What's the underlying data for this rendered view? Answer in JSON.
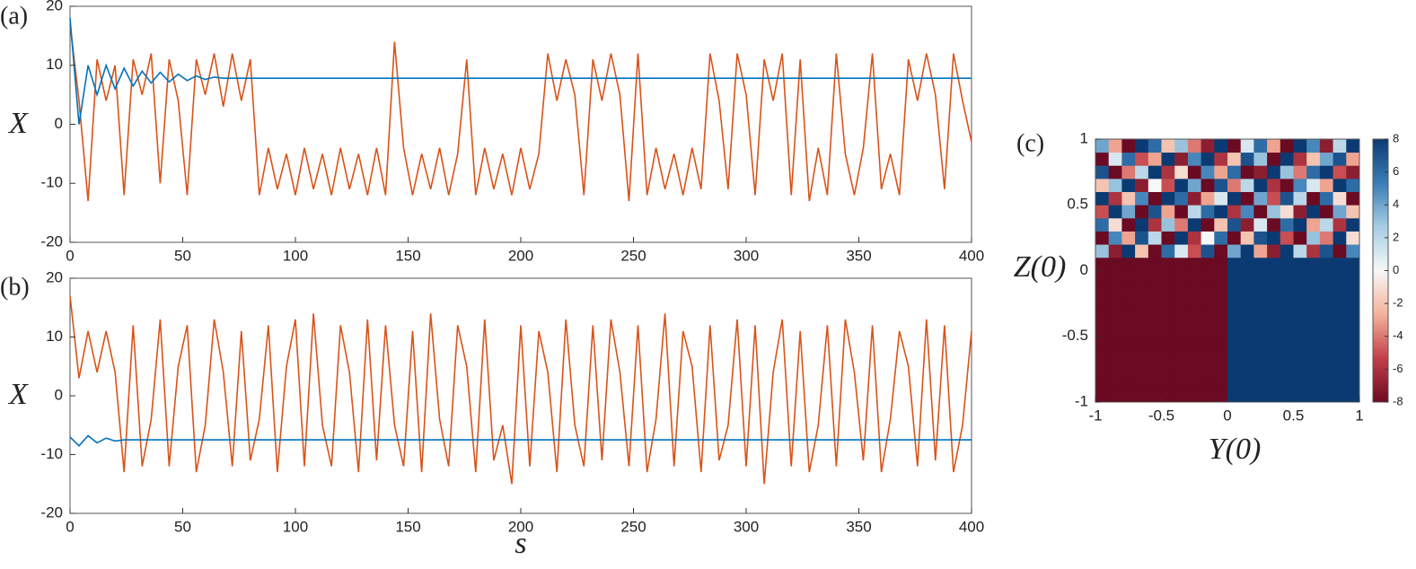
{
  "chart_data": [
    {
      "type": "line",
      "label": "(a)",
      "ylabel": "X",
      "x": [
        0,
        4,
        8,
        12,
        16,
        20,
        24,
        28,
        32,
        36,
        40,
        44,
        48,
        52,
        56,
        60,
        64,
        68,
        72,
        76,
        80,
        84,
        88,
        92,
        96,
        100,
        104,
        108,
        112,
        116,
        120,
        124,
        128,
        132,
        136,
        140,
        144,
        148,
        152,
        156,
        160,
        164,
        168,
        172,
        176,
        180,
        184,
        188,
        192,
        196,
        200,
        204,
        208,
        212,
        216,
        220,
        224,
        228,
        232,
        236,
        240,
        244,
        248,
        252,
        256,
        260,
        264,
        268,
        272,
        276,
        280,
        284,
        288,
        292,
        296,
        300,
        304,
        308,
        312,
        316,
        320,
        324,
        328,
        332,
        336,
        340,
        344,
        348,
        352,
        356,
        360,
        364,
        368,
        372,
        376,
        380,
        384,
        388,
        392,
        396,
        400
      ],
      "series": [
        {
          "color": "#0072bd",
          "values": [
            18,
            0,
            10,
            5,
            10,
            6,
            9.5,
            6.5,
            9,
            7,
            8.8,
            7.2,
            8.5,
            7.4,
            8.2,
            7.6,
            8,
            7.8,
            7.8,
            7.8,
            7.8,
            7.8,
            7.8,
            7.8,
            7.8,
            7.8,
            7.8,
            7.8,
            7.8,
            7.8,
            7.8,
            7.8,
            7.8,
            7.8,
            7.8,
            7.8,
            7.8,
            7.8,
            7.8,
            7.8,
            7.8,
            7.8,
            7.8,
            7.8,
            7.8,
            7.8,
            7.8,
            7.8,
            7.8,
            7.8,
            7.8,
            7.8,
            7.8,
            7.8,
            7.8,
            7.8,
            7.8,
            7.8,
            7.8,
            7.8,
            7.8,
            7.8,
            7.8,
            7.8,
            7.8,
            7.8,
            7.8,
            7.8,
            7.8,
            7.8,
            7.8,
            7.8,
            7.8,
            7.8,
            7.8,
            7.8,
            7.8,
            7.8,
            7.8,
            7.8,
            7.8,
            7.8,
            7.8,
            7.8,
            7.8,
            7.8,
            7.8,
            7.8,
            7.8,
            7.8,
            7.8,
            7.8,
            7.8,
            7.8,
            7.8,
            7.8,
            7.8,
            7.8,
            7.8,
            7.8,
            7.8
          ]
        },
        {
          "color": "#d95319",
          "values": [
            17,
            4,
            -13,
            11,
            4,
            10,
            -12,
            11,
            5,
            12,
            -10,
            11,
            4,
            -12,
            11,
            5,
            12,
            3,
            12,
            4,
            11,
            -12,
            -4,
            -11,
            -5,
            -12,
            -4,
            -11,
            -5,
            -12,
            -4,
            -11,
            -5,
            -12,
            -4,
            -12,
            14,
            -4,
            -12,
            -5,
            -11,
            -4,
            -12,
            -5,
            11,
            -12,
            -4,
            -11,
            -5,
            -12,
            -4,
            -11,
            -5,
            12,
            4,
            11,
            5,
            -12,
            11,
            4,
            12,
            5,
            -13,
            12,
            -12,
            -4,
            -11,
            -5,
            -12,
            -4,
            -11,
            12,
            4,
            -11,
            12,
            5,
            -12,
            11,
            4,
            12,
            -12,
            11,
            -13,
            -4,
            -12,
            12,
            -5,
            -12,
            -4,
            12,
            -11,
            -5,
            -12,
            11,
            4,
            12,
            5,
            -11,
            12,
            4,
            -3
          ]
        }
      ],
      "xlim": [
        0,
        400
      ],
      "xticks": [
        0,
        50,
        100,
        150,
        200,
        250,
        300,
        350,
        400
      ],
      "ylim": [
        -20,
        20
      ],
      "yticks": [
        -20,
        -10,
        0,
        10,
        20
      ]
    },
    {
      "type": "line",
      "label": "(b)",
      "ylabel": "X",
      "xlabel": "s",
      "x": [
        0,
        4,
        8,
        12,
        16,
        20,
        24,
        28,
        32,
        36,
        40,
        44,
        48,
        52,
        56,
        60,
        64,
        68,
        72,
        76,
        80,
        84,
        88,
        92,
        96,
        100,
        104,
        108,
        112,
        116,
        120,
        124,
        128,
        132,
        136,
        140,
        144,
        148,
        152,
        156,
        160,
        164,
        168,
        172,
        176,
        180,
        184,
        188,
        192,
        196,
        200,
        204,
        208,
        212,
        216,
        220,
        224,
        228,
        232,
        236,
        240,
        244,
        248,
        252,
        256,
        260,
        264,
        268,
        272,
        276,
        280,
        284,
        288,
        292,
        296,
        300,
        304,
        308,
        312,
        316,
        320,
        324,
        328,
        332,
        336,
        340,
        344,
        348,
        352,
        356,
        360,
        364,
        368,
        372,
        376,
        380,
        384,
        388,
        392,
        396,
        400
      ],
      "series": [
        {
          "color": "#0072bd",
          "values": [
            -7,
            -8.5,
            -6.8,
            -8,
            -7.2,
            -7.7,
            -7.5,
            -7.5,
            -7.5,
            -7.5,
            -7.5,
            -7.5,
            -7.5,
            -7.5,
            -7.5,
            -7.5,
            -7.5,
            -7.5,
            -7.5,
            -7.5,
            -7.5,
            -7.5,
            -7.5,
            -7.5,
            -7.5,
            -7.5,
            -7.5,
            -7.5,
            -7.5,
            -7.5,
            -7.5,
            -7.5,
            -7.5,
            -7.5,
            -7.5,
            -7.5,
            -7.5,
            -7.5,
            -7.5,
            -7.5,
            -7.5,
            -7.5,
            -7.5,
            -7.5,
            -7.5,
            -7.5,
            -7.5,
            -7.5,
            -7.5,
            -7.5,
            -7.5,
            -7.5,
            -7.5,
            -7.5,
            -7.5,
            -7.5,
            -7.5,
            -7.5,
            -7.5,
            -7.5,
            -7.5,
            -7.5,
            -7.5,
            -7.5,
            -7.5,
            -7.5,
            -7.5,
            -7.5,
            -7.5,
            -7.5,
            -7.5,
            -7.5,
            -7.5,
            -7.5,
            -7.5,
            -7.5,
            -7.5,
            -7.5,
            -7.5,
            -7.5,
            -7.5,
            -7.5,
            -7.5,
            -7.5,
            -7.5,
            -7.5,
            -7.5,
            -7.5,
            -7.5,
            -7.5,
            -7.5,
            -7.5,
            -7.5,
            -7.5,
            -7.5,
            -7.5,
            -7.5,
            -7.5,
            -7.5,
            -7.5,
            -7.5
          ]
        },
        {
          "color": "#d95319",
          "values": [
            17,
            3,
            11,
            4,
            11,
            4,
            -13,
            12,
            -12,
            -4,
            13,
            -12,
            5,
            12,
            -13,
            -5,
            13,
            4,
            -12,
            11,
            -11,
            -4,
            12,
            -13,
            5,
            13,
            -12,
            14,
            -5,
            -12,
            12,
            4,
            -13,
            13,
            -11,
            12,
            -5,
            -12,
            11,
            -13,
            14,
            -4,
            -12,
            12,
            5,
            -13,
            13,
            -11,
            -5,
            -15,
            12,
            -12,
            11,
            4,
            -13,
            13,
            -5,
            -12,
            12,
            -11,
            13,
            4,
            -12,
            12,
            -13,
            -4,
            14,
            -12,
            11,
            5,
            -13,
            12,
            -11,
            -5,
            13,
            -12,
            12,
            -15,
            4,
            13,
            -12,
            11,
            -13,
            -5,
            12,
            -12,
            13,
            4,
            -11,
            12,
            -13,
            -4,
            11,
            5,
            -12,
            13,
            -11,
            12,
            -13,
            -5,
            11
          ]
        }
      ],
      "xlim": [
        0,
        400
      ],
      "xticks": [
        0,
        50,
        100,
        150,
        200,
        250,
        300,
        350,
        400
      ],
      "ylim": [
        -20,
        20
      ],
      "yticks": [
        -20,
        -10,
        0,
        10,
        20
      ]
    },
    {
      "type": "heatmap",
      "label": "(c)",
      "xlabel": "Y(0)",
      "ylabel": "Z(0)",
      "xlim": [
        -1,
        1
      ],
      "xticks": [
        -1,
        -0.5,
        0,
        0.5,
        1
      ],
      "ylim": [
        -1,
        1
      ],
      "yticks": [
        -1,
        -0.5,
        0,
        0.5,
        1
      ],
      "clim": [
        -8,
        8
      ],
      "cticks": [
        -8,
        -6,
        -4,
        -2,
        0,
        2,
        4,
        6,
        8
      ],
      "colormap": [
        "#6b0a23",
        "#c2404a",
        "#f4b29a",
        "#f7f7f7",
        "#a6cde3",
        "#3a7db6",
        "#0b3a72"
      ],
      "values": [
        [
          -8,
          -8,
          -8,
          -8,
          -8,
          -8,
          -8,
          -8,
          -8,
          -8,
          8,
          8,
          8,
          8,
          8,
          8,
          8,
          8,
          8,
          8
        ],
        [
          -8,
          -8,
          -8,
          -8,
          -8,
          -8,
          -8,
          -8,
          -8,
          -8,
          8,
          8,
          8,
          8,
          8,
          8,
          8,
          8,
          8,
          8
        ],
        [
          -8,
          -8,
          -8,
          -8,
          -8,
          -8,
          -8,
          -8,
          -8,
          -8,
          8,
          8,
          8,
          8,
          8,
          8,
          8,
          8,
          8,
          8
        ],
        [
          -8,
          -8,
          -8,
          -8,
          -8,
          -8,
          -8,
          -8,
          -8,
          -8,
          8,
          8,
          8,
          8,
          8,
          8,
          8,
          8,
          8,
          8
        ],
        [
          -8,
          -8,
          -8,
          -8,
          -8,
          -8,
          -8,
          -8,
          -8,
          -8,
          8,
          8,
          8,
          8,
          8,
          8,
          8,
          8,
          8,
          8
        ],
        [
          -8,
          -8,
          -8,
          -8,
          -8,
          -8,
          -8,
          -8,
          -8,
          -8,
          8,
          8,
          8,
          8,
          8,
          8,
          8,
          8,
          8,
          8
        ],
        [
          -8,
          -8,
          -8,
          -8,
          -8,
          -8,
          -8,
          -8,
          -8,
          -8,
          8,
          8,
          8,
          8,
          8,
          8,
          8,
          8,
          8,
          8
        ],
        [
          -8,
          -8,
          -8,
          -8,
          -8,
          -8,
          -8,
          -8,
          -8,
          -8,
          8,
          8,
          8,
          8,
          8,
          8,
          8,
          8,
          8,
          8
        ],
        [
          -8,
          -8,
          -8,
          -8,
          -8,
          -8,
          -8,
          -8,
          -8,
          -8,
          8,
          8,
          8,
          8,
          8,
          8,
          8,
          8,
          8,
          8
        ],
        [
          -8,
          -8,
          -8,
          -8,
          -8,
          -8,
          -8,
          -8,
          -8,
          -8,
          8,
          8,
          8,
          8,
          8,
          8,
          8,
          8,
          8,
          8
        ],
        [
          -8,
          -8,
          -8,
          -8,
          -8,
          -8,
          -8,
          -8,
          -8,
          -8,
          8,
          8,
          8,
          8,
          8,
          8,
          8,
          8,
          8,
          8
        ],
        [
          3,
          -7,
          8,
          -2,
          -8,
          6,
          1,
          -5,
          7,
          -8,
          4,
          8,
          -3,
          -7,
          8,
          2,
          -6,
          7,
          -8,
          5
        ],
        [
          -8,
          5,
          -3,
          7,
          2,
          -8,
          8,
          -6,
          0,
          6,
          -8,
          -2,
          7,
          8,
          -5,
          -8,
          3,
          -4,
          8,
          -1
        ],
        [
          6,
          -1,
          -8,
          8,
          -6,
          3,
          -4,
          8,
          -8,
          -2,
          7,
          -7,
          1,
          -8,
          6,
          8,
          -3,
          2,
          -6,
          8
        ],
        [
          -5,
          8,
          4,
          -8,
          7,
          -3,
          -8,
          2,
          6,
          8,
          -6,
          5,
          -8,
          3,
          -1,
          -7,
          8,
          -8,
          4,
          -2
        ],
        [
          8,
          -6,
          -2,
          5,
          -8,
          8,
          6,
          -7,
          -3,
          1,
          8,
          -8,
          4,
          -5,
          7,
          2,
          -8,
          6,
          -1,
          -8
        ],
        [
          -2,
          3,
          8,
          -7,
          0,
          -5,
          8,
          4,
          -8,
          7,
          -4,
          2,
          8,
          -6,
          -8,
          5,
          1,
          -3,
          8,
          6
        ],
        [
          7,
          -8,
          -4,
          2,
          8,
          -6,
          -1,
          -8,
          5,
          -3,
          6,
          -8,
          -7,
          8,
          3,
          -4,
          6,
          8,
          -5,
          -7
        ],
        [
          -8,
          1,
          6,
          -5,
          -3,
          8,
          -7,
          5,
          8,
          -6,
          -2,
          7,
          3,
          -8,
          8,
          -6,
          -2,
          4,
          7,
          -3
        ],
        [
          4,
          -3,
          -8,
          8,
          6,
          -2,
          3,
          -4,
          -7,
          8,
          -8,
          1,
          6,
          -3,
          -8,
          8,
          5,
          -7,
          2,
          8
        ]
      ]
    }
  ]
}
